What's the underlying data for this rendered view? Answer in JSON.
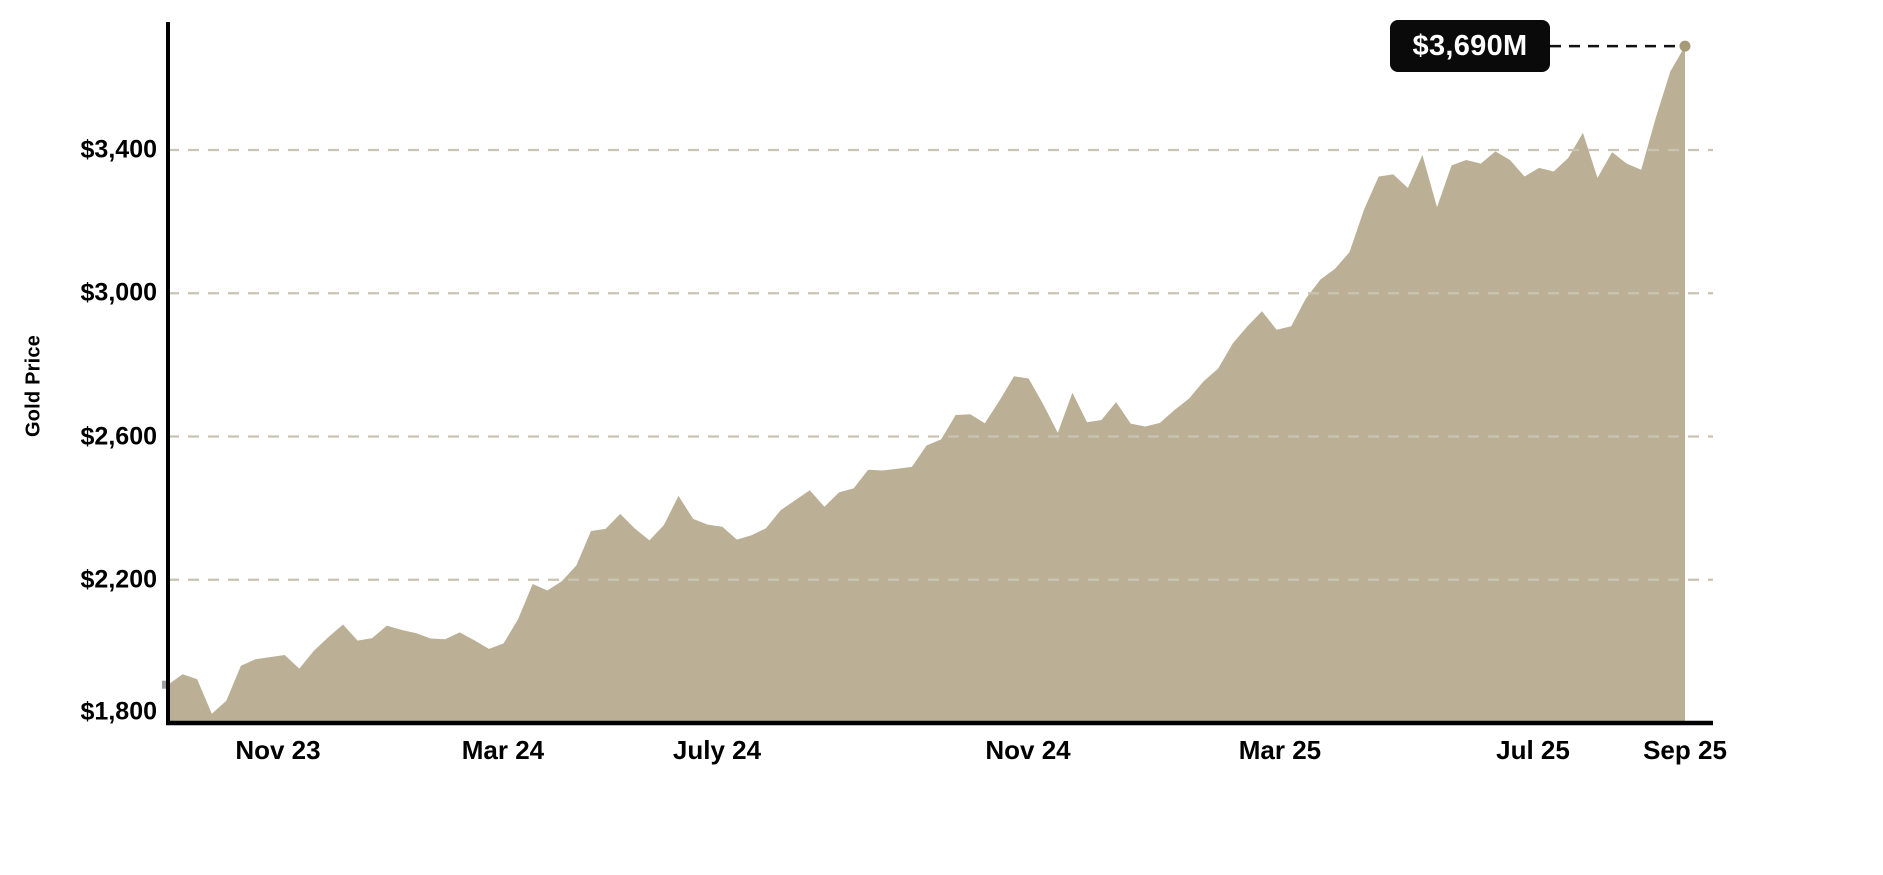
{
  "colors": {
    "area_fill": "#bbb096",
    "gridline": "#c9c3b2",
    "axis": "#000000",
    "end_dot": "#a79a78",
    "start_marker": "#a0a0a0",
    "tooltip_bg": "#0a0a0a",
    "tooltip_text": "#ffffff",
    "leader_line": "#111111"
  },
  "chart_data": {
    "type": "area",
    "title": "",
    "xlabel": "",
    "ylabel": "Gold Price",
    "series_name": "Gold Price",
    "unit": "USD",
    "grid": "dashed-horizontal",
    "legend_position": "none",
    "ylim": [
      1800,
      3775
    ],
    "y_ticks": [
      1800,
      2200,
      2600,
      3000,
      3400
    ],
    "y_tick_labels": [
      "$1,800",
      "$2,200",
      "$2,600",
      "$3,000",
      "$3,400"
    ],
    "x_ticks": [
      {
        "label": "Nov 23",
        "pos": 0.0725
      },
      {
        "label": "Mar 24",
        "pos": 0.2208
      },
      {
        "label": "July 24",
        "pos": 0.3619
      },
      {
        "label": "Nov 24",
        "pos": 0.5669
      },
      {
        "label": "Mar 25",
        "pos": 0.733
      },
      {
        "label": "Jul 25",
        "pos": 0.8998
      },
      {
        "label": "Sep 25",
        "pos": 1.0
      }
    ],
    "x_range_note": "weekly data, mid-Sep 2023 to mid-Sep 2025",
    "end_label": "$3,690M",
    "end_value": 3690,
    "values": [
      1907,
      1936,
      1922,
      1826,
      1862,
      1960,
      1978,
      1984,
      1990,
      1952,
      2002,
      2040,
      2075,
      2030,
      2037,
      2072,
      2060,
      2051,
      2036,
      2034,
      2053,
      2031,
      2007,
      2022,
      2090,
      2188,
      2170,
      2196,
      2240,
      2336,
      2342,
      2384,
      2343,
      2310,
      2353,
      2434,
      2370,
      2354,
      2348,
      2312,
      2324,
      2344,
      2394,
      2422,
      2450,
      2404,
      2444,
      2455,
      2507,
      2505,
      2510,
      2515,
      2575,
      2592,
      2660,
      2662,
      2637,
      2700,
      2768,
      2762,
      2690,
      2610,
      2722,
      2640,
      2646,
      2696,
      2636,
      2628,
      2638,
      2674,
      2706,
      2754,
      2790,
      2860,
      2908,
      2950,
      2898,
      2908,
      2985,
      3038,
      3068,
      3115,
      3234,
      3326,
      3332,
      3294,
      3386,
      3240,
      3357,
      3372,
      3362,
      3396,
      3372,
      3326,
      3350,
      3340,
      3378,
      3448,
      3322,
      3394,
      3362,
      3345,
      3490,
      3620,
      3690
    ]
  }
}
